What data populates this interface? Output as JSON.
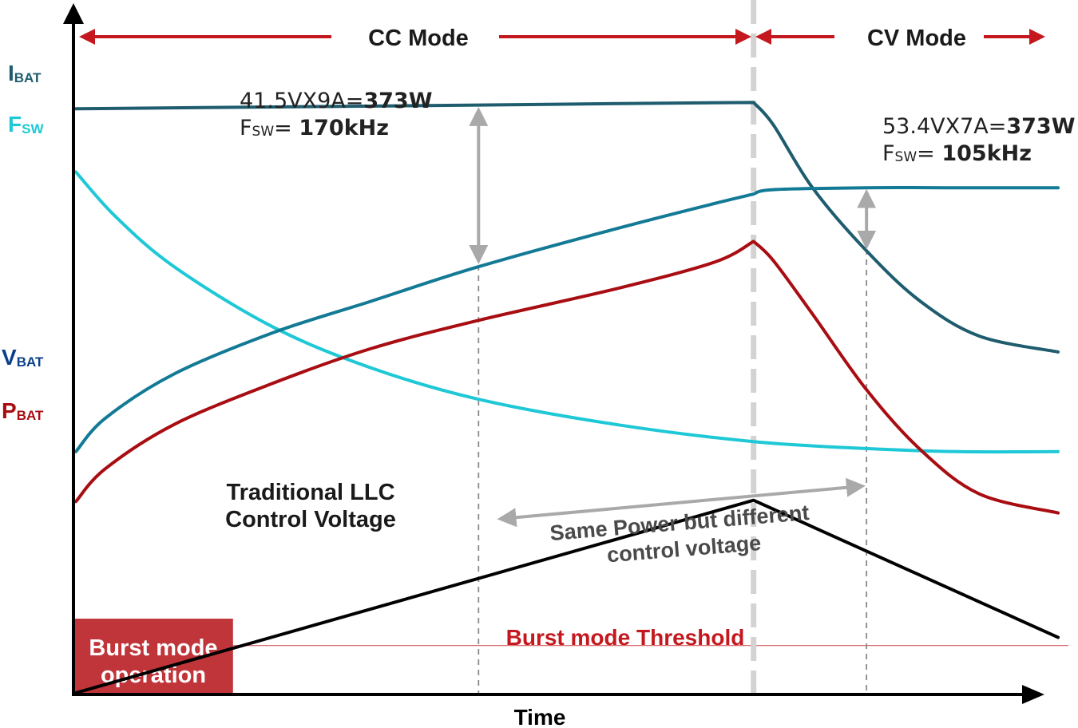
{
  "chart_data": {
    "type": "line",
    "title": "",
    "xlabel": "Time",
    "ylabel": "",
    "x_units": "relative time, 0 to 100",
    "y_units": "relative level, 0 to 100",
    "xlim": [
      0,
      100
    ],
    "ylim": [
      0,
      100
    ],
    "phase_boundary_x": 69,
    "guide_x": [
      41,
      80.5
    ],
    "modes": [
      {
        "label": "CC Mode",
        "from": 0,
        "to": 69
      },
      {
        "label": "CV Mode",
        "from": 69,
        "to": 100
      }
    ],
    "series": [
      {
        "name": "IBAT",
        "label_main": "I",
        "label_sub": "BAT",
        "color": "#1e5c6e",
        "x": [
          0,
          20,
          41,
          60,
          69,
          71,
          75,
          80.5,
          86,
          92,
          100
        ],
        "y": [
          92.5,
          92.8,
          93.1,
          93.4,
          93.5,
          90,
          80,
          70,
          62,
          56.5,
          54
        ]
      },
      {
        "name": "FSW",
        "label_main": "F",
        "label_sub": "SW",
        "color": "#1ec8d6",
        "x": [
          0,
          4,
          10,
          20,
          30,
          41,
          55,
          69,
          80.5,
          90,
          100
        ],
        "y": [
          82.5,
          75.5,
          67.5,
          58,
          51.5,
          46.5,
          42.5,
          39.8,
          38.7,
          38.2,
          38.2
        ]
      },
      {
        "name": "VBAT",
        "label_main": "V",
        "label_sub": "BAT",
        "color": "#137a96",
        "x": [
          0,
          3,
          10,
          20,
          30,
          41,
          55,
          65,
          69,
          71,
          80.5,
          90,
          100
        ],
        "y": [
          38.2,
          43.5,
          50.5,
          57,
          62,
          67.5,
          73.5,
          77.5,
          79,
          79.7,
          80,
          80,
          80
        ]
      },
      {
        "name": "PBAT",
        "label_main": "P",
        "label_sub": "BAT",
        "color": "#a80d12",
        "x": [
          0,
          3,
          10,
          20,
          30,
          41,
          55,
          65,
          69,
          71,
          75,
          80.5,
          86,
          92,
          100
        ],
        "y": [
          30.3,
          35.5,
          42.5,
          49,
          54.5,
          59,
          64,
          68.2,
          71.5,
          68.5,
          60,
          48,
          38.5,
          31.5,
          28.5
        ]
      },
      {
        "name": "Traditional LLC Control Voltage",
        "color": "#000000",
        "x": [
          0,
          69,
          100
        ],
        "y": [
          0,
          30.5,
          8.8
        ]
      }
    ],
    "threshold": {
      "label": "Burst mode Threshold",
      "value": 7.5,
      "color": "#c4181e"
    },
    "burst_region": {
      "label_line1": "Burst mode",
      "label_line2": "operation",
      "x_from": 0,
      "x_to": 16,
      "color": "#c0353a"
    },
    "annotations": {
      "cc_line1_prefix": "41.5VX9A=",
      "cc_line1_bold": "373W",
      "cc_f_main": "F",
      "cc_f_sub": "SW",
      "cc_line2_sep": "= ",
      "cc_line2_bold": "170kHz",
      "cv_line1_prefix": "53.4VX7A=",
      "cv_line1_bold": "373W",
      "cv_f_main": "F",
      "cv_f_sub": "SW",
      "cv_line2_sep": "= ",
      "cv_line2_bold": "105kHz",
      "llc_line1": "Traditional LLC",
      "llc_line2": "Control Voltage",
      "same_line1": "Same Power but different",
      "same_line2": "control voltage"
    }
  }
}
